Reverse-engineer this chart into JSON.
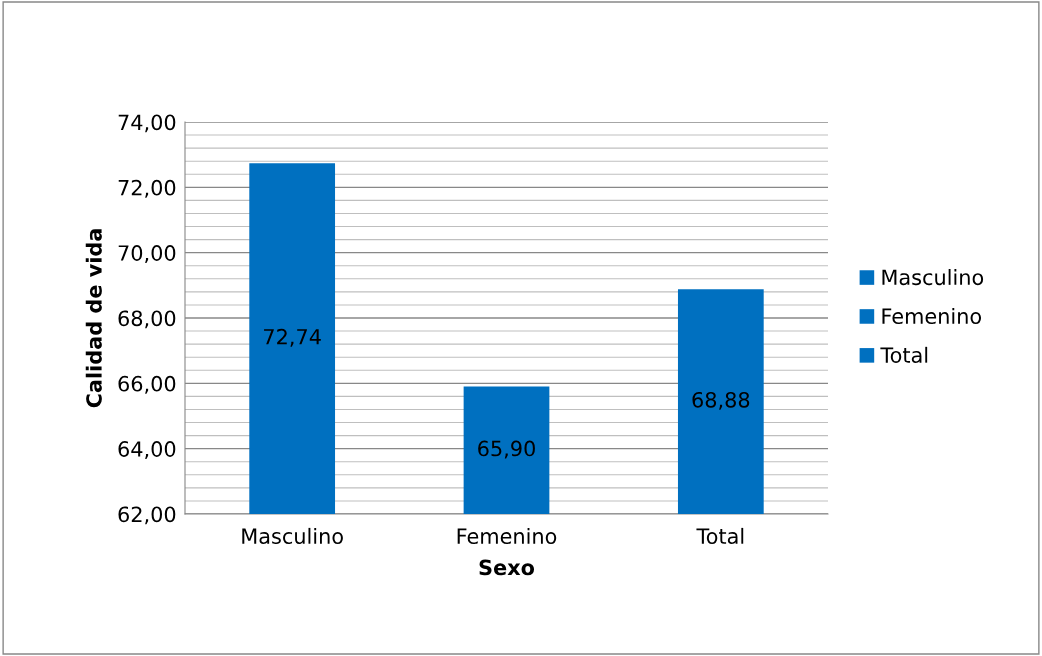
{
  "chart_data": {
    "type": "bar",
    "xlabel": "Sexo",
    "ylabel": "Calidad de vida",
    "categories": [
      "Masculino",
      "Femenino",
      "Total"
    ],
    "series": [
      {
        "name": "Masculino",
        "color": "#0070c0",
        "values": [
          72.74,
          null,
          null
        ],
        "value_labels": [
          "72,74",
          null,
          null
        ]
      },
      {
        "name": "Femenino",
        "color": "#0070c0",
        "values": [
          null,
          65.9,
          null
        ],
        "value_labels": [
          null,
          "65,90",
          null
        ]
      },
      {
        "name": "Total",
        "color": "#0070c0",
        "values": [
          null,
          null,
          68.88
        ],
        "value_labels": [
          null,
          null,
          "68,88"
        ]
      }
    ],
    "ylim": [
      62,
      74
    ],
    "yticks": [
      {
        "value": 62,
        "label": "62,00"
      },
      {
        "value": 64,
        "label": "64,00"
      },
      {
        "value": 66,
        "label": "66,00"
      },
      {
        "value": 68,
        "label": "68,00"
      },
      {
        "value": 70,
        "label": "70,00"
      },
      {
        "value": 72,
        "label": "72,00"
      },
      {
        "value": 74,
        "label": "74,00"
      }
    ],
    "grid": "y",
    "legend": "right"
  }
}
